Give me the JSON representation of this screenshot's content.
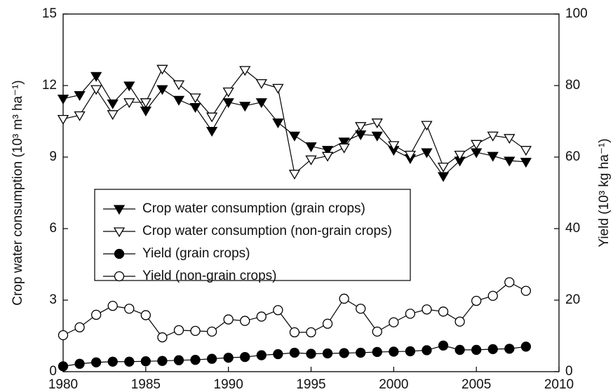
{
  "chart_data": {
    "type": "line",
    "ylabel": "Crop water consumption (10³ m³ ha⁻¹)",
    "y2label": "Yield (10³ kg ha⁻¹)",
    "x": [
      1980,
      1981,
      1982,
      1983,
      1984,
      1985,
      1986,
      1987,
      1988,
      1989,
      1990,
      1991,
      1992,
      1993,
      1994,
      1995,
      1996,
      1997,
      1998,
      1999,
      2000,
      2001,
      2002,
      2003,
      2004,
      2005,
      2006,
      2007,
      2008
    ],
    "xlim": [
      1980,
      2010
    ],
    "xticks": [
      1980,
      1985,
      1990,
      1995,
      2000,
      2005,
      2010
    ],
    "ylim": [
      0,
      15
    ],
    "yticks": [
      0,
      3,
      6,
      9,
      12,
      15
    ],
    "y2lim": [
      0,
      100
    ],
    "y2ticks": [
      0,
      20,
      40,
      60,
      80,
      100
    ],
    "series": [
      {
        "name": "Crop water consumption (grain crops)",
        "color": "#000000",
        "marker": "triangle-down",
        "filled": true,
        "values": [
          11.45,
          11.6,
          12.4,
          11.25,
          12.0,
          10.95,
          11.85,
          11.4,
          11.1,
          10.1,
          11.3,
          11.15,
          11.3,
          10.45,
          9.9,
          9.45,
          9.3,
          9.65,
          9.95,
          9.9,
          9.3,
          8.95,
          9.2,
          8.2,
          8.85,
          9.2,
          9.05,
          8.85,
          8.8
        ]
      },
      {
        "name": "Crop water consumption (non-grain crops)",
        "color": "#000000",
        "marker": "triangle-down",
        "filled": false,
        "values": [
          10.6,
          10.75,
          11.85,
          10.8,
          11.3,
          11.3,
          12.7,
          12.05,
          11.5,
          10.7,
          11.75,
          12.65,
          12.1,
          11.9,
          8.3,
          8.9,
          9.05,
          9.4,
          10.3,
          10.45,
          9.5,
          9.1,
          10.35,
          8.6,
          9.1,
          9.55,
          9.9,
          9.8,
          9.3
        ]
      },
      {
        "name": "Yield (grain crops)",
        "color": "#000000",
        "marker": "circle",
        "filled": true,
        "axis": "y2",
        "values": [
          1.5,
          2.2,
          2.6,
          2.8,
          2.8,
          2.9,
          3.0,
          3.2,
          3.3,
          3.6,
          3.9,
          4.1,
          4.6,
          4.9,
          5.3,
          5.0,
          5.1,
          5.2,
          5.3,
          5.5,
          5.6,
          5.7,
          6.0,
          7.3,
          6.1,
          6.1,
          6.3,
          6.4,
          7.0
        ]
      },
      {
        "name": "Yield (non-grain crops)",
        "color": "#000000",
        "marker": "circle",
        "filled": false,
        "axis": "y2",
        "values": [
          10.2,
          12.4,
          15.9,
          18.4,
          17.6,
          15.8,
          9.6,
          11.6,
          11.4,
          11.2,
          14.6,
          14.2,
          15.4,
          17.2,
          11.0,
          11.0,
          13.4,
          20.4,
          17.6,
          11.2,
          13.8,
          16.2,
          17.4,
          16.8,
          14.0,
          19.8,
          21.2,
          25.0,
          22.6
        ]
      }
    ]
  }
}
